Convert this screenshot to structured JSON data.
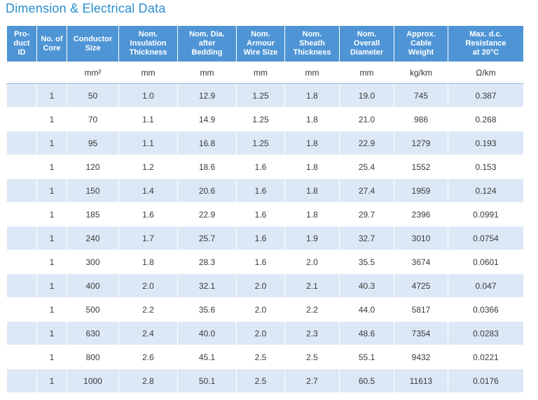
{
  "title": "Dimension & Electrical Data",
  "columns": [
    {
      "label": "Pro-\nduct\nID",
      "unit": ""
    },
    {
      "label": "No. of\nCore",
      "unit": ""
    },
    {
      "label": "Conductor\nSize",
      "unit": "mm²"
    },
    {
      "label": "Nom.\nInsulation\nThickness",
      "unit": "mm"
    },
    {
      "label": "Nom. Dia.\nafter\nBedding",
      "unit": "mm"
    },
    {
      "label": "Nom.\nArmour\nWire Size",
      "unit": "mm"
    },
    {
      "label": "Nom.\nSheath\nThickness",
      "unit": "mm"
    },
    {
      "label": "Nom.\nOverall\nDiameter",
      "unit": "mm"
    },
    {
      "label": "Approx.\nCable\nWeight",
      "unit": "kg/km"
    },
    {
      "label": "Max. d.c.\nResistance\nat 20°C",
      "unit": "Ω/km"
    }
  ],
  "rows": [
    [
      "",
      "1",
      "50",
      "1.0",
      "12.9",
      "1.25",
      "1.8",
      "19.0",
      "745",
      "0.387"
    ],
    [
      "",
      "1",
      "70",
      "1.1",
      "14.9",
      "1.25",
      "1.8",
      "21.0",
      "986",
      "0.268"
    ],
    [
      "",
      "1",
      "95",
      "1.1",
      "16.8",
      "1.25",
      "1.8",
      "22.9",
      "1279",
      "0.193"
    ],
    [
      "",
      "1",
      "120",
      "1.2",
      "18.6",
      "1.6",
      "1.8",
      "25.4",
      "1552",
      "0.153"
    ],
    [
      "",
      "1",
      "150",
      "1.4",
      "20.6",
      "1.6",
      "1.8",
      "27.4",
      "1959",
      "0.124"
    ],
    [
      "",
      "1",
      "185",
      "1.6",
      "22.9",
      "1.6",
      "1.8",
      "29.7",
      "2396",
      "0.0991"
    ],
    [
      "",
      "1",
      "240",
      "1.7",
      "25.7",
      "1.6",
      "1.9",
      "32.7",
      "3010",
      "0.0754"
    ],
    [
      "",
      "1",
      "300",
      "1.8",
      "28.3",
      "1.6",
      "2.0",
      "35.5",
      "3674",
      "0.0601"
    ],
    [
      "",
      "1",
      "400",
      "2.0",
      "32.1",
      "2.0",
      "2.1",
      "40.3",
      "4725",
      "0.047"
    ],
    [
      "",
      "1",
      "500",
      "2.2",
      "35.6",
      "2.0",
      "2.2",
      "44.0",
      "5817",
      "0.0366"
    ],
    [
      "",
      "1",
      "630",
      "2.4",
      "40.0",
      "2.0",
      "2.3",
      "48.6",
      "7354",
      "0.0283"
    ],
    [
      "",
      "1",
      "800",
      "2.6",
      "45.1",
      "2.5",
      "2.5",
      "55.1",
      "9432",
      "0.0221"
    ],
    [
      "",
      "1",
      "1000",
      "2.8",
      "50.1",
      "2.5",
      "2.7",
      "60.5",
      "11613",
      "0.0176"
    ]
  ],
  "colors": {
    "header_bg": "#4f95d6",
    "row_shade": "#dce8f6",
    "title": "#2a8fd0"
  }
}
